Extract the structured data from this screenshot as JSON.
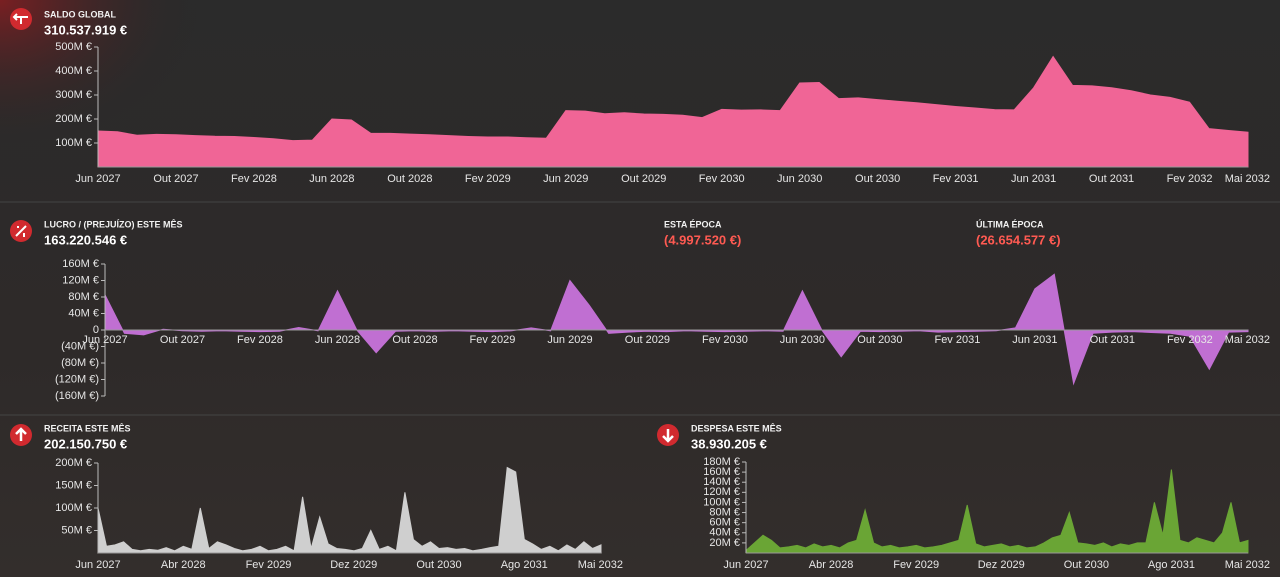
{
  "chart_data": [
    {
      "type": "area",
      "title": "SALDO GLOBAL",
      "subtitle": "310.537.919 €",
      "color": "#f06596",
      "categories": [
        "Jun 2027",
        null,
        null,
        null,
        "Out 2027",
        null,
        null,
        null,
        "Fev 2028",
        null,
        null,
        null,
        "Jun 2028",
        null,
        null,
        null,
        "Out 2028",
        null,
        null,
        null,
        "Fev 2029",
        null,
        null,
        null,
        "Jun 2029",
        null,
        null,
        null,
        "Out 2029",
        null,
        null,
        null,
        "Fev 2030",
        null,
        null,
        null,
        "Jun 2030",
        null,
        null,
        null,
        "Out 2030",
        null,
        null,
        null,
        "Fev 2031",
        null,
        null,
        null,
        "Jun 2031",
        null,
        null,
        null,
        "Out 2031",
        null,
        null,
        null,
        "Fev 2032",
        null,
        null,
        "Mai 2032"
      ],
      "values": [
        150,
        147,
        132,
        136,
        134,
        131,
        128,
        127,
        123,
        118,
        110,
        112,
        200,
        196,
        140,
        140,
        137,
        134,
        131,
        127,
        125,
        125,
        122,
        120,
        235,
        233,
        222,
        226,
        221,
        219,
        216,
        206,
        240,
        237,
        238,
        235,
        350,
        352,
        285,
        288,
        281,
        274,
        268,
        260,
        252,
        246,
        239,
        238,
        330,
        460,
        340,
        338,
        330,
        318,
        300,
        290,
        270,
        160,
        152,
        145
      ],
      "ylim": [
        0,
        500
      ],
      "yticks": [
        {
          "value": 100,
          "label": "100M €"
        },
        {
          "value": 200,
          "label": "200M €"
        },
        {
          "value": 300,
          "label": "300M €"
        },
        {
          "value": 400,
          "label": "400M €"
        },
        {
          "value": 500,
          "label": "500M €"
        }
      ]
    },
    {
      "type": "area",
      "title": "LUCRO / (PREJUÍZO) ESTE MÊS",
      "subtitle": "163.220.546 €",
      "color": "#c06fd2",
      "annotations": [
        {
          "label": "ESTA ÉPOCA",
          "value": "(4.997.520 €)"
        },
        {
          "label": "ÚLTIMA ÉPOCA",
          "value": "(26.654.577 €)"
        }
      ],
      "categories": [
        "Jun 2027",
        null,
        null,
        null,
        "Out 2027",
        null,
        null,
        null,
        "Fev 2028",
        null,
        null,
        null,
        "Jun 2028",
        null,
        null,
        null,
        "Out 2028",
        null,
        null,
        null,
        "Fev 2029",
        null,
        null,
        null,
        "Jun 2029",
        null,
        null,
        null,
        "Out 2029",
        null,
        null,
        null,
        "Fev 2030",
        null,
        null,
        null,
        "Jun 2030",
        null,
        null,
        null,
        "Out 2030",
        null,
        null,
        null,
        "Fev 2031",
        null,
        null,
        null,
        "Jun 2031",
        null,
        null,
        null,
        "Out 2031",
        null,
        null,
        null,
        "Fev 2032",
        null,
        null,
        "Mai 2032"
      ],
      "values": [
        85,
        -8,
        -12,
        2,
        -2,
        -3,
        -2,
        -3,
        -4,
        -3,
        6,
        -2,
        95,
        0,
        -55,
        -3,
        -2,
        -3,
        -2,
        -3,
        -4,
        -2,
        5,
        -2,
        120,
        60,
        -8,
        -5,
        -3,
        -4,
        -2,
        -3,
        -4,
        -3,
        -2,
        -3,
        95,
        0,
        -65,
        -3,
        -4,
        -3,
        -2,
        -5,
        -4,
        -3,
        -2,
        5,
        100,
        135,
        -130,
        -8,
        -5,
        -4,
        -6,
        -8,
        -15,
        -95,
        -5,
        -4
      ],
      "ylim": [
        -160,
        160
      ],
      "yticks": [
        {
          "value": -160,
          "label": "(160M €)"
        },
        {
          "value": -120,
          "label": "(120M €)"
        },
        {
          "value": -80,
          "label": "(80M €)"
        },
        {
          "value": -40,
          "label": "(40M €)"
        },
        0,
        {
          "value": 40,
          "label": "40M €"
        },
        {
          "value": 80,
          "label": "80M €"
        },
        {
          "value": 120,
          "label": "120M €"
        },
        {
          "value": 160,
          "label": "160M €"
        }
      ]
    },
    {
      "type": "area",
      "title": "RECEITA ESTE MÊS",
      "subtitle": "202.150.750 €",
      "color": "#cfcfcf",
      "categories": [
        "Jun 2027",
        null,
        null,
        null,
        null,
        null,
        null,
        null,
        null,
        null,
        "Abr 2028",
        null,
        null,
        null,
        null,
        null,
        null,
        null,
        null,
        null,
        "Fev 2029",
        null,
        null,
        null,
        null,
        null,
        null,
        null,
        null,
        null,
        "Dez 2029",
        null,
        null,
        null,
        null,
        null,
        null,
        null,
        null,
        null,
        "Out 2030",
        null,
        null,
        null,
        null,
        null,
        null,
        null,
        null,
        null,
        "Ago 2031",
        null,
        null,
        null,
        null,
        null,
        null,
        null,
        null,
        "Mai 2032"
      ],
      "values": [
        100,
        15,
        18,
        25,
        8,
        5,
        8,
        6,
        12,
        5,
        15,
        8,
        100,
        10,
        25,
        18,
        10,
        5,
        8,
        15,
        5,
        8,
        15,
        5,
        125,
        10,
        80,
        20,
        10,
        8,
        5,
        10,
        50,
        8,
        15,
        5,
        135,
        30,
        15,
        25,
        10,
        12,
        8,
        10,
        5,
        8,
        12,
        15,
        190,
        180,
        30,
        20,
        8,
        15,
        5,
        18,
        8,
        25,
        10,
        18
      ],
      "ylim": [
        0,
        200
      ],
      "yticks": [
        {
          "value": 50,
          "label": "50M €"
        },
        {
          "value": 100,
          "label": "100M €"
        },
        {
          "value": 150,
          "label": "150M €"
        },
        {
          "value": 200,
          "label": "200M €"
        }
      ]
    },
    {
      "type": "area",
      "title": "DESPESA ESTE MÊS",
      "subtitle": "38.930.205 €",
      "color": "#6aa535",
      "categories": [
        "Jun 2027",
        null,
        null,
        null,
        null,
        null,
        null,
        null,
        null,
        null,
        "Abr 2028",
        null,
        null,
        null,
        null,
        null,
        null,
        null,
        null,
        null,
        "Fev 2029",
        null,
        null,
        null,
        null,
        null,
        null,
        null,
        null,
        null,
        "Dez 2029",
        null,
        null,
        null,
        null,
        null,
        null,
        null,
        null,
        null,
        "Out 2030",
        null,
        null,
        null,
        null,
        null,
        null,
        null,
        null,
        null,
        "Ago 2031",
        null,
        null,
        null,
        null,
        null,
        null,
        null,
        null,
        "Mai 2032"
      ],
      "values": [
        5,
        20,
        35,
        25,
        10,
        12,
        15,
        10,
        18,
        12,
        15,
        10,
        20,
        25,
        85,
        20,
        12,
        15,
        10,
        12,
        15,
        10,
        12,
        15,
        20,
        25,
        95,
        18,
        12,
        15,
        18,
        12,
        15,
        10,
        12,
        20,
        30,
        35,
        80,
        20,
        18,
        15,
        20,
        12,
        18,
        15,
        20,
        20,
        100,
        35,
        165,
        25,
        20,
        30,
        25,
        20,
        40,
        100,
        20,
        25
      ],
      "ylim": [
        0,
        180
      ],
      "yticks": [
        {
          "value": 20,
          "label": "20M €"
        },
        {
          "value": 40,
          "label": "40M €"
        },
        {
          "value": 60,
          "label": "60M €"
        },
        {
          "value": 80,
          "label": "80M €"
        },
        {
          "value": 100,
          "label": "100M €"
        },
        {
          "value": 120,
          "label": "120M €"
        },
        {
          "value": 140,
          "label": "140M €"
        },
        {
          "value": 160,
          "label": "160M €"
        },
        {
          "value": 180,
          "label": "180M €"
        }
      ]
    }
  ]
}
